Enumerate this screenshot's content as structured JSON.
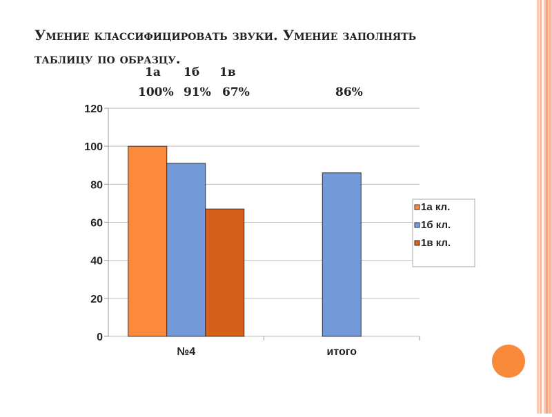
{
  "slide": {
    "title": "Умение классифицировать звуки. Умение заполнять таблицу по образцу.",
    "class_labels": [
      "1а",
      "1б",
      "1в"
    ],
    "percent_labels": [
      "100%",
      "91%",
      "67%"
    ],
    "total_percent": "86%"
  },
  "colors": {
    "accent": "#f98a3c",
    "stripe": "#fbc6b2"
  },
  "chart_data": {
    "type": "bar",
    "categories": [
      "№4",
      "итого"
    ],
    "series": [
      {
        "name": "1а кл.",
        "values": [
          100,
          null
        ],
        "color": "#fb8a3c"
      },
      {
        "name": "1б кл.",
        "values": [
          91,
          86
        ],
        "color": "#7399d8"
      },
      {
        "name": "1в кл.",
        "values": [
          67,
          null
        ],
        "color": "#d5601c"
      }
    ],
    "ylim": [
      0,
      120
    ],
    "yticks": [
      0,
      20,
      40,
      60,
      80,
      100,
      120
    ],
    "grid": true,
    "legend": "right"
  }
}
